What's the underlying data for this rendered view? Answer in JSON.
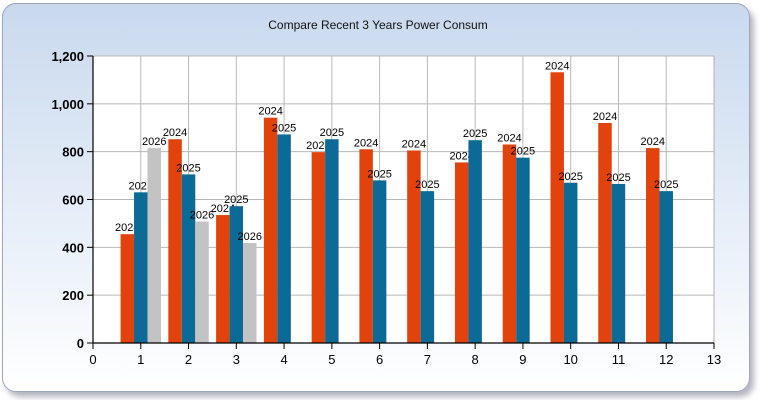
{
  "chart_data": {
    "type": "bar",
    "title": "Compare Recent 3 Years Power Consum",
    "xlabel": "",
    "ylabel": "",
    "xlim": [
      0,
      13
    ],
    "ylim": [
      0,
      1200
    ],
    "x_ticks": [
      "0",
      "1",
      "2",
      "3",
      "4",
      "5",
      "6",
      "7",
      "8",
      "9",
      "10",
      "11",
      "12",
      "13"
    ],
    "y_ticks": [
      "0",
      "200",
      "400",
      "600",
      "800",
      "1,000",
      "1,200"
    ],
    "y_tick_values": [
      0,
      200,
      400,
      600,
      800,
      1000,
      1200
    ],
    "x_tick_values": [
      0,
      1,
      2,
      3,
      4,
      5,
      6,
      7,
      8,
      9,
      10,
      11,
      12,
      13
    ],
    "grid": true,
    "categories": [
      "1",
      "2",
      "3",
      "4",
      "5",
      "6",
      "7",
      "8",
      "9",
      "10",
      "11",
      "12"
    ],
    "series": [
      {
        "name": "2024",
        "color": "#e2430c",
        "values": [
          455,
          852,
          535,
          942,
          798,
          810,
          805,
          755,
          830,
          1132,
          920,
          815
        ]
      },
      {
        "name": "2025",
        "color": "#0b6a96",
        "values": [
          630,
          705,
          572,
          872,
          852,
          680,
          635,
          848,
          775,
          670,
          665,
          635
        ]
      },
      {
        "name": "2026",
        "color": "#c3c3c3",
        "values": [
          815,
          508,
          418,
          null,
          null,
          null,
          null,
          null,
          null,
          null,
          null,
          null
        ]
      }
    ]
  }
}
